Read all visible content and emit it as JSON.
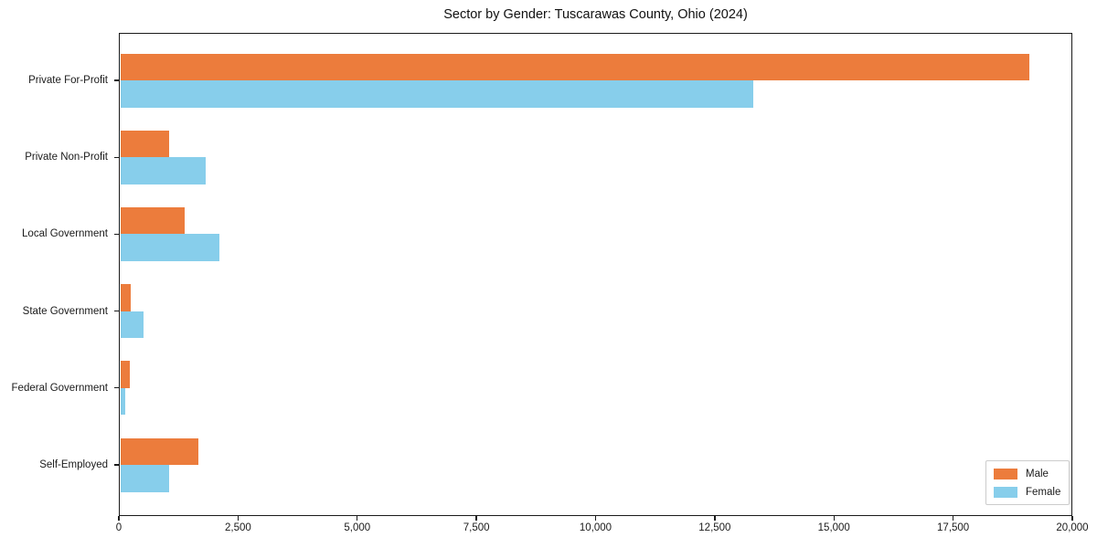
{
  "chart_data": {
    "type": "bar",
    "orientation": "horizontal",
    "title": "Sector by Gender: Tuscarawas County, Ohio (2024)",
    "categories": [
      "Private For-Profit",
      "Private Non-Profit",
      "Local Government",
      "State Government",
      "Federal Government",
      "Self-Employed"
    ],
    "series": [
      {
        "name": "Male",
        "color": "#ec7c3c",
        "values": [
          19100,
          1050,
          1380,
          250,
          230,
          1670
        ]
      },
      {
        "name": "Female",
        "color": "#87ceeb",
        "values": [
          13300,
          1820,
          2110,
          520,
          130,
          1050
        ]
      }
    ],
    "xlabel": "",
    "ylabel": "",
    "xlim": [
      0,
      20000
    ],
    "xticks": [
      0,
      2500,
      5000,
      7500,
      10000,
      12500,
      15000,
      17500,
      20000
    ],
    "xtick_labels": [
      "0",
      "2,500",
      "5,000",
      "7,500",
      "10,000",
      "12,500",
      "15,000",
      "17,500",
      "20,000"
    ],
    "grid": false,
    "legend": {
      "position": "lower right"
    }
  },
  "layout_colors": {
    "axis": "#1a1a1a",
    "legend_border": "#cccccc",
    "background": "#ffffff"
  }
}
